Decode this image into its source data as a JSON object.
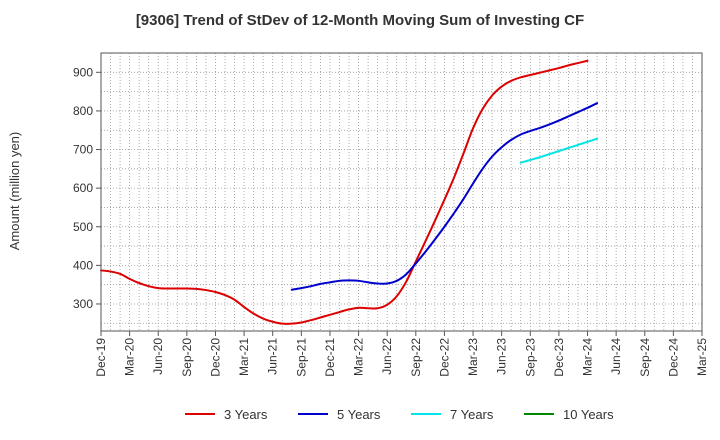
{
  "chart_data": {
    "type": "line",
    "title": "[9306]  Trend of StDev of 12-Month Moving Sum of Investing CF",
    "ylabel": "Amount (million yen)",
    "xlabel": "",
    "ylim": [
      230,
      950
    ],
    "yticks": [
      300,
      400,
      500,
      600,
      700,
      800,
      900
    ],
    "x_start": "2019-12",
    "x_end": "2025-03",
    "categories": [
      "Dec-19",
      "Mar-20",
      "Jun-20",
      "Sep-20",
      "Dec-20",
      "Mar-21",
      "Jun-21",
      "Sep-21",
      "Dec-21",
      "Mar-22",
      "Jun-22",
      "Sep-22",
      "Dec-22",
      "Mar-23",
      "Jun-23",
      "Sep-23",
      "Dec-23",
      "Mar-24",
      "Jun-24",
      "Sep-24",
      "Dec-24",
      "Mar-25"
    ],
    "grid": true,
    "legend_position": "bottom",
    "series": [
      {
        "name": "3 Years",
        "color": "#dd0000",
        "points": [
          [
            "2019-12",
            387
          ],
          [
            "2020-01",
            384
          ],
          [
            "2020-02",
            378
          ],
          [
            "2020-03",
            365
          ],
          [
            "2020-04",
            354
          ],
          [
            "2020-05",
            346
          ],
          [
            "2020-06",
            341
          ],
          [
            "2020-07",
            340
          ],
          [
            "2020-08",
            340
          ],
          [
            "2020-09",
            340
          ],
          [
            "2020-10",
            339
          ],
          [
            "2020-11",
            336
          ],
          [
            "2020-12",
            331
          ],
          [
            "2021-01",
            323
          ],
          [
            "2021-02",
            311
          ],
          [
            "2021-03",
            292
          ],
          [
            "2021-04",
            275
          ],
          [
            "2021-05",
            262
          ],
          [
            "2021-06",
            254
          ],
          [
            "2021-07",
            249
          ],
          [
            "2021-08",
            249
          ],
          [
            "2021-09",
            252
          ],
          [
            "2021-10",
            258
          ],
          [
            "2021-11",
            265
          ],
          [
            "2021-12",
            272
          ],
          [
            "2022-01",
            279
          ],
          [
            "2022-02",
            286
          ],
          [
            "2022-03",
            290
          ],
          [
            "2022-04",
            289
          ],
          [
            "2022-05",
            289
          ],
          [
            "2022-06",
            298
          ],
          [
            "2022-07",
            320
          ],
          [
            "2022-08",
            358
          ],
          [
            "2022-09",
            410
          ],
          [
            "2022-10",
            462
          ],
          [
            "2022-11",
            515
          ],
          [
            "2022-12",
            570
          ],
          [
            "2023-01",
            627
          ],
          [
            "2023-02",
            690
          ],
          [
            "2023-03",
            755
          ],
          [
            "2023-04",
            805
          ],
          [
            "2023-05",
            840
          ],
          [
            "2023-06",
            863
          ],
          [
            "2023-07",
            878
          ],
          [
            "2023-08",
            887
          ],
          [
            "2023-09",
            893
          ],
          [
            "2023-10",
            899
          ],
          [
            "2023-11",
            905
          ],
          [
            "2023-12",
            911
          ],
          [
            "2024-01",
            918
          ],
          [
            "2024-02",
            924
          ],
          [
            "2024-03",
            930
          ]
        ]
      },
      {
        "name": "5 Years",
        "color": "#0000cc",
        "points": [
          [
            "2021-08",
            337
          ],
          [
            "2021-09",
            341
          ],
          [
            "2021-10",
            346
          ],
          [
            "2021-11",
            352
          ],
          [
            "2021-12",
            356
          ],
          [
            "2022-01",
            360
          ],
          [
            "2022-02",
            361
          ],
          [
            "2022-03",
            360
          ],
          [
            "2022-04",
            356
          ],
          [
            "2022-05",
            353
          ],
          [
            "2022-06",
            353
          ],
          [
            "2022-07",
            360
          ],
          [
            "2022-08",
            377
          ],
          [
            "2022-09",
            405
          ],
          [
            "2022-10",
            435
          ],
          [
            "2022-11",
            467
          ],
          [
            "2022-12",
            500
          ],
          [
            "2023-01",
            535
          ],
          [
            "2023-02",
            572
          ],
          [
            "2023-03",
            612
          ],
          [
            "2023-04",
            650
          ],
          [
            "2023-05",
            682
          ],
          [
            "2023-06",
            706
          ],
          [
            "2023-07",
            725
          ],
          [
            "2023-08",
            739
          ],
          [
            "2023-09",
            748
          ],
          [
            "2023-10",
            756
          ],
          [
            "2023-11",
            765
          ],
          [
            "2023-12",
            775
          ],
          [
            "2024-01",
            786
          ],
          [
            "2024-02",
            797
          ],
          [
            "2024-03",
            808
          ],
          [
            "2024-04",
            820
          ]
        ]
      },
      {
        "name": "7 Years",
        "color": "#00e5e5",
        "points": [
          [
            "2023-08",
            666
          ],
          [
            "2023-09",
            673
          ],
          [
            "2023-10",
            680
          ],
          [
            "2023-11",
            688
          ],
          [
            "2023-12",
            696
          ],
          [
            "2024-01",
            704
          ],
          [
            "2024-02",
            712
          ],
          [
            "2024-03",
            720
          ],
          [
            "2024-04",
            728
          ]
        ]
      },
      {
        "name": "10 Years",
        "color": "#008800",
        "points": []
      }
    ]
  }
}
